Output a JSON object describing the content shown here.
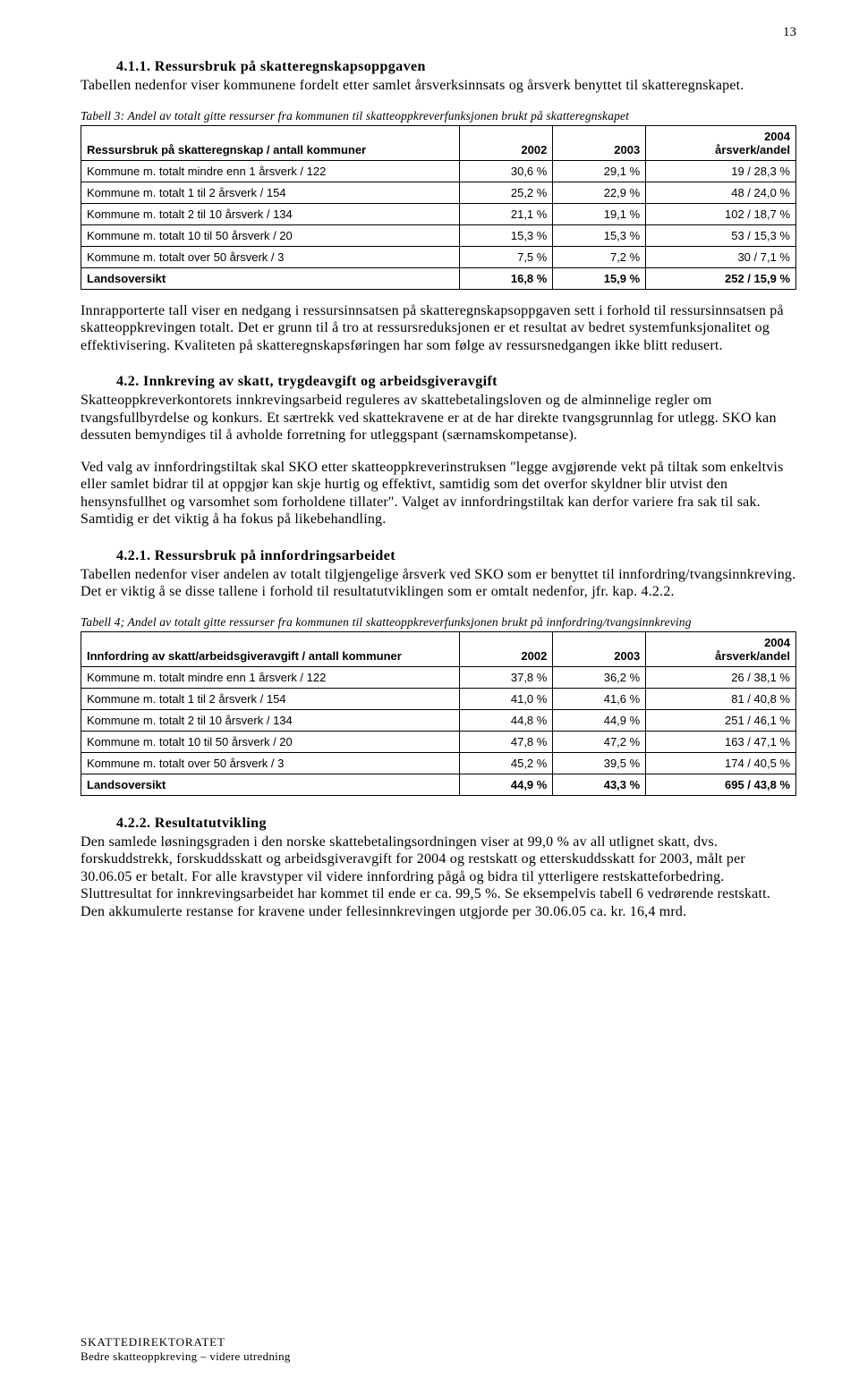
{
  "pageNumber": "13",
  "section411": {
    "heading": "4.1.1. Ressursbruk på skatteregnskapsoppgaven",
    "p1": "Tabellen nedenfor viser kommunene fordelt etter samlet årsverksinnsats og årsverk benyttet til skatteregnskapet."
  },
  "table3": {
    "caption": "Tabell 3: Andel av totalt gitte ressurser fra kommunen til skatteoppkreverfunksjonen brukt på skatteregnskapet",
    "headers": [
      "Ressursbruk på skatteregnskap / antall kommuner",
      "2002",
      "2003",
      "2004 årsverk/andel"
    ],
    "rows": [
      [
        "Kommune m. totalt mindre enn 1 årsverk / 122",
        "30,6 %",
        "29,1 %",
        "19 / 28,3 %"
      ],
      [
        "Kommune m. totalt 1 til 2 årsverk / 154",
        "25,2 %",
        "22,9 %",
        "48 / 24,0 %"
      ],
      [
        "Kommune m. totalt 2 til 10 årsverk / 134",
        "21,1 %",
        "19,1 %",
        "102 / 18,7 %"
      ],
      [
        "Kommune m. totalt 10 til 50 årsverk / 20",
        "15,3 %",
        "15,3 %",
        "53 / 15,3 %"
      ],
      [
        "Kommune m. totalt over 50 årsverk / 3",
        "7,5 %",
        "7,2 %",
        "30 / 7,1 %"
      ],
      [
        "Landsoversikt",
        "16,8 %",
        "15,9 %",
        "252 / 15,9 %"
      ]
    ]
  },
  "afterTable3": "Innrapporterte tall viser en nedgang i ressursinnsatsen på skatteregnskapsoppgaven sett i forhold til ressursinnsatsen på skatteoppkrevingen totalt. Det er grunn til å tro at ressursreduksjonen er et resultat av bedret systemfunksjonalitet og effektivisering. Kvaliteten på skatteregnskapsføringen har som følge av ressursnedgangen ikke blitt redusert.",
  "section42": {
    "heading": "4.2. Innkreving av skatt, trygdeavgift og arbeidsgiveravgift",
    "p1": "Skatteoppkreverkontorets innkrevingsarbeid reguleres av skattebetalingsloven og de alminnelige regler om tvangsfullbyrdelse og konkurs. Et særtrekk ved skattekravene er at de har direkte tvangsgrunnlag for utlegg. SKO kan dessuten bemyndiges til å avholde forretning for utleggspant (særnamskompetanse).",
    "p2": "Ved valg av innfordringstiltak skal SKO etter skatteoppkreverinstruksen \"legge avgjørende vekt på tiltak som enkeltvis eller samlet bidrar til at oppgjør kan skje hurtig og effektivt, samtidig som det overfor skyldner blir utvist den hensynsfullhet og varsomhet som forholdene tillater\". Valget av innfordringstiltak kan derfor variere fra sak til sak. Samtidig er det viktig å ha fokus på likebehandling."
  },
  "section421": {
    "heading": "4.2.1. Ressursbruk på innfordringsarbeidet",
    "p1": "Tabellen nedenfor viser andelen av totalt tilgjengelige årsverk ved SKO som er benyttet til innfordring/tvangsinnkreving. Det er viktig å se disse tallene i forhold til resultatutviklingen som er omtalt nedenfor, jfr. kap. 4.2.2."
  },
  "table4": {
    "caption": "Tabell 4; Andel av totalt gitte ressurser fra kommunen til skatteoppkreverfunksjonen brukt på innfordring/tvangsinnkreving",
    "headers": [
      "Innfordring av skatt/arbeidsgiveravgift / antall kommuner",
      "2002",
      "2003",
      "2004 årsverk/andel"
    ],
    "rows": [
      [
        "Kommune m. totalt mindre enn 1 årsverk / 122",
        "37,8 %",
        "36,2 %",
        "26 / 38,1 %"
      ],
      [
        "Kommune m. totalt 1 til 2 årsverk / 154",
        "41,0 %",
        "41,6 %",
        "81 / 40,8 %"
      ],
      [
        "Kommune m. totalt 2 til 10 årsverk / 134",
        "44,8 %",
        "44,9 %",
        "251 / 46,1 %"
      ],
      [
        "Kommune m. totalt 10 til 50 årsverk / 20",
        "47,8 %",
        "47,2 %",
        "163 / 47,1 %"
      ],
      [
        "Kommune m. totalt over 50 årsverk / 3",
        "45,2 %",
        "39,5 %",
        "174 / 40,5 %"
      ],
      [
        "Landsoversikt",
        "44,9 %",
        "43,3 %",
        "695 / 43,8 %"
      ]
    ]
  },
  "section422": {
    "heading": "4.2.2. Resultatutvikling",
    "p1": "Den samlede løsningsgraden i den norske skattebetalingsordningen viser at 99,0 % av all utlignet skatt, dvs. forskuddstrekk, forskuddsskatt og arbeidsgiveravgift for 2004 og restskatt og etterskuddsskatt for 2003, målt per 30.06.05 er betalt. For alle kravstyper vil videre innfordring pågå og bidra til ytterligere restskatteforbedring. Sluttresultat for innkrevingsarbeidet har kommet til ende er ca. 99,5 %. Se eksempelvis tabell 6 vedrørende restskatt. Den akkumulerte restanse for kravene under fellesinnkrevingen utgjorde per 30.06.05 ca. kr. 16,4 mrd."
  },
  "footer": {
    "line1": "SKATTEDIREKTORATET",
    "line2": "Bedre skatteoppkreving – videre utredning"
  },
  "layout": {
    "col1_width": "53%",
    "col2_width": "13%",
    "col3_width": "13%",
    "col4_width": "21%"
  }
}
